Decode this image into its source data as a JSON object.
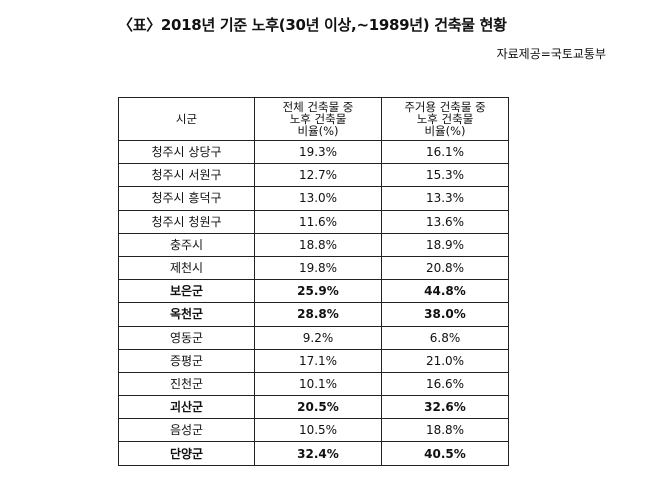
{
  "title": "〈표〉2018년 기준 노후(30년 이상,~1989년) 건축물 현황",
  "source": "자료제공=국토교통부",
  "table": {
    "headers": [
      [
        "시군"
      ],
      [
        "전체 건축물 중",
        "노후 건축물",
        "비율(%)"
      ],
      [
        "주거용 건축물 중",
        "노후 건축물",
        "비율(%)"
      ]
    ],
    "rows": [
      {
        "region": "청주시 상당구",
        "total": "19.3%",
        "residential": "16.1%",
        "bold": false
      },
      {
        "region": "청주시 서원구",
        "total": "12.7%",
        "residential": "15.3%",
        "bold": false
      },
      {
        "region": "청주시 흥덕구",
        "total": "13.0%",
        "residential": "13.3%",
        "bold": false
      },
      {
        "region": "청주시 청원구",
        "total": "11.6%",
        "residential": "13.6%",
        "bold": false
      },
      {
        "region": "충주시",
        "total": "18.8%",
        "residential": "18.9%",
        "bold": false
      },
      {
        "region": "제천시",
        "total": "19.8%",
        "residential": "20.8%",
        "bold": false
      },
      {
        "region": "보은군",
        "total": "25.9%",
        "residential": "44.8%",
        "bold": true
      },
      {
        "region": "옥천군",
        "total": "28.8%",
        "residential": "38.0%",
        "bold": true
      },
      {
        "region": "영동군",
        "total": "9.2%",
        "residential": "6.8%",
        "bold": false
      },
      {
        "region": "증평군",
        "total": "17.1%",
        "residential": "21.0%",
        "bold": false
      },
      {
        "region": "진천군",
        "total": "10.1%",
        "residential": "16.6%",
        "bold": false
      },
      {
        "region": "괴산군",
        "total": "20.5%",
        "residential": "32.6%",
        "bold": true
      },
      {
        "region": "음성군",
        "total": "10.5%",
        "residential": "18.8%",
        "bold": false
      },
      {
        "region": "단양군",
        "total": "32.4%",
        "residential": "40.5%",
        "bold": true
      }
    ]
  }
}
